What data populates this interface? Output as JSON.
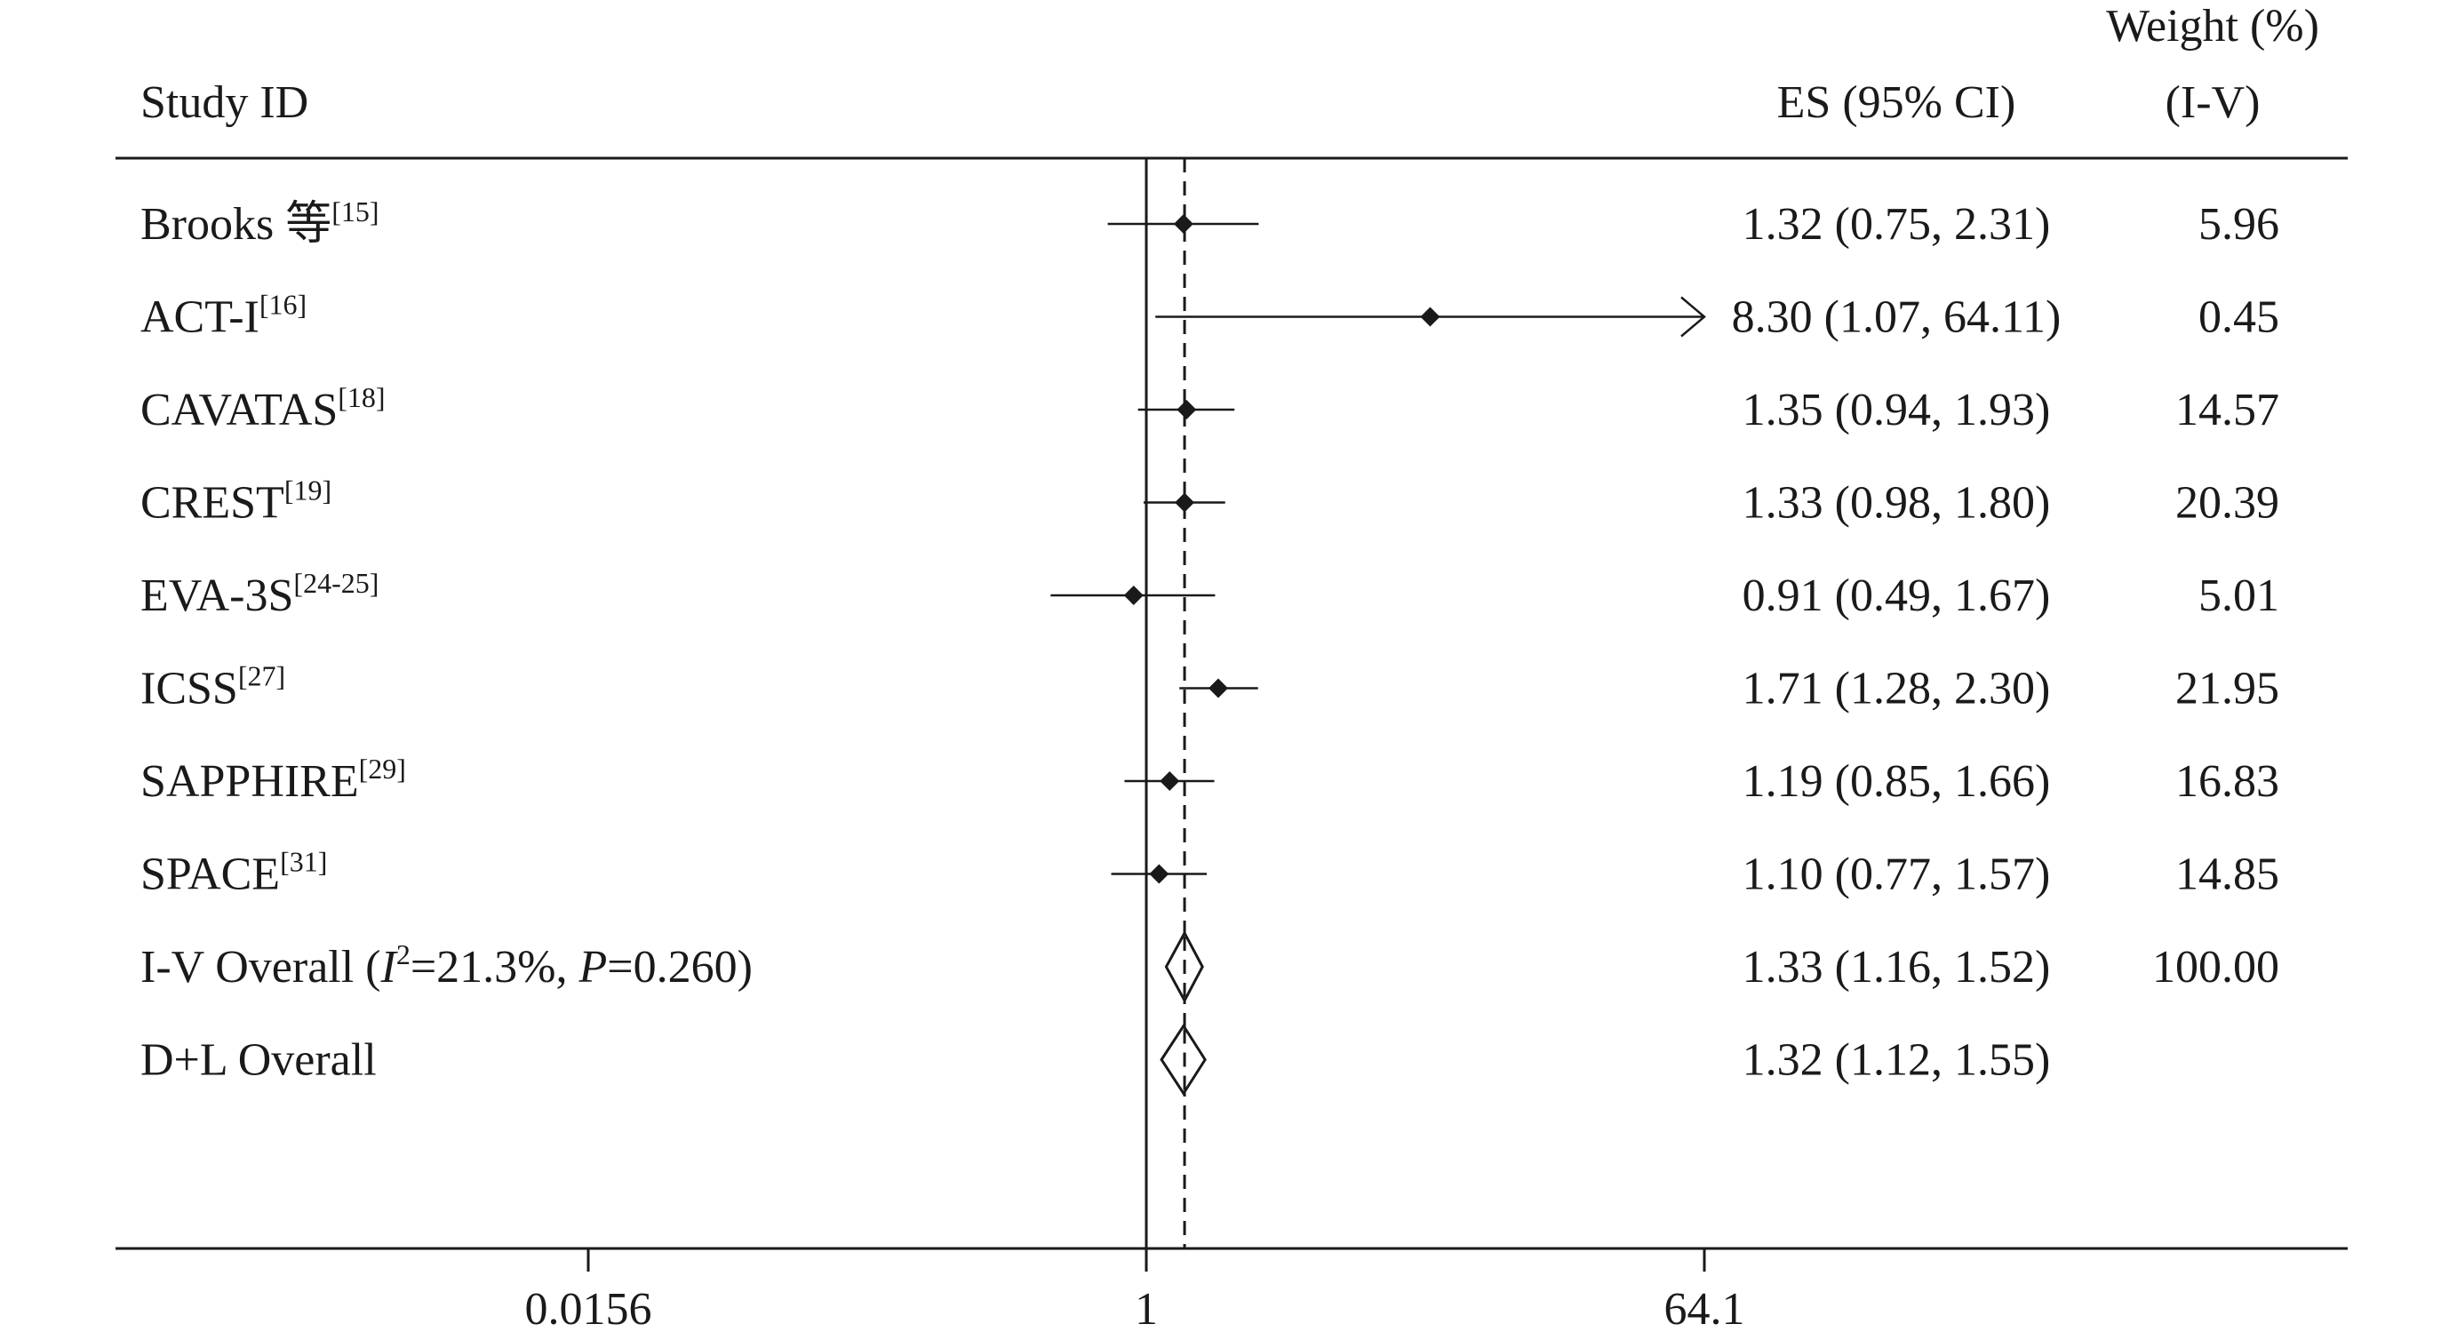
{
  "chart_data": {
    "type": "forest",
    "header": {
      "study": "Study ID",
      "es": "ES (95% CI)",
      "weight_line1": "Weight (%)",
      "weight_line2": "(I-V)"
    },
    "x_scale": "log",
    "x_ticks": [
      {
        "value": 0.0156,
        "label": "0.0156"
      },
      {
        "value": 1,
        "label": "1"
      },
      {
        "value": 64.1,
        "label": "64.1"
      }
    ],
    "xlim": [
      0.0156,
      64.1
    ],
    "reference_line": 1,
    "pooled_line": 1.33,
    "studies": [
      {
        "name": "Brooks 等",
        "ref": "[15]",
        "es": 1.32,
        "lo": 0.75,
        "hi": 2.31,
        "es_text": "1.32 (0.75, 2.31)",
        "weight": "5.96"
      },
      {
        "name": "ACT-I",
        "ref": "[16]",
        "es": 8.3,
        "lo": 1.07,
        "hi": 64.11,
        "es_text": "8.30 (1.07, 64.11)",
        "weight": "0.45",
        "arrow_right": true
      },
      {
        "name": "CAVATAS",
        "ref": "[18]",
        "es": 1.35,
        "lo": 0.94,
        "hi": 1.93,
        "es_text": "1.35 (0.94, 1.93)",
        "weight": "14.57"
      },
      {
        "name": "CREST",
        "ref": "[19]",
        "es": 1.33,
        "lo": 0.98,
        "hi": 1.8,
        "es_text": "1.33 (0.98, 1.80)",
        "weight": "20.39"
      },
      {
        "name": "EVA-3S",
        "ref": "[24-25]",
        "es": 0.91,
        "lo": 0.49,
        "hi": 1.67,
        "es_text": "0.91 (0.49, 1.67)",
        "weight": "5.01"
      },
      {
        "name": "ICSS",
        "ref": "[27]",
        "es": 1.71,
        "lo": 1.28,
        "hi": 2.3,
        "es_text": "1.71 (1.28, 2.30)",
        "weight": "21.95"
      },
      {
        "name": "SAPPHIRE",
        "ref": "[29]",
        "es": 1.19,
        "lo": 0.85,
        "hi": 1.66,
        "es_text": "1.19 (0.85, 1.66)",
        "weight": "16.83"
      },
      {
        "name": "SPACE",
        "ref": "[31]",
        "es": 1.1,
        "lo": 0.77,
        "hi": 1.57,
        "es_text": "1.10 (0.77, 1.57)",
        "weight": "14.85"
      }
    ],
    "overall": [
      {
        "name": "I-V Overall",
        "stats": {
          "i2_symbol": "I",
          "i2_sup": "2",
          "i2_value": "=21.3%, ",
          "p_symbol": "P",
          "p_value": "=0.260)"
        },
        "es": 1.33,
        "lo": 1.16,
        "hi": 1.52,
        "es_text": "1.33 (1.16, 1.52)",
        "weight": "100.00"
      },
      {
        "name": "D+L Overall",
        "es": 1.32,
        "lo": 1.12,
        "hi": 1.55,
        "es_text": "1.32 (1.12, 1.55)",
        "weight": ""
      }
    ]
  }
}
